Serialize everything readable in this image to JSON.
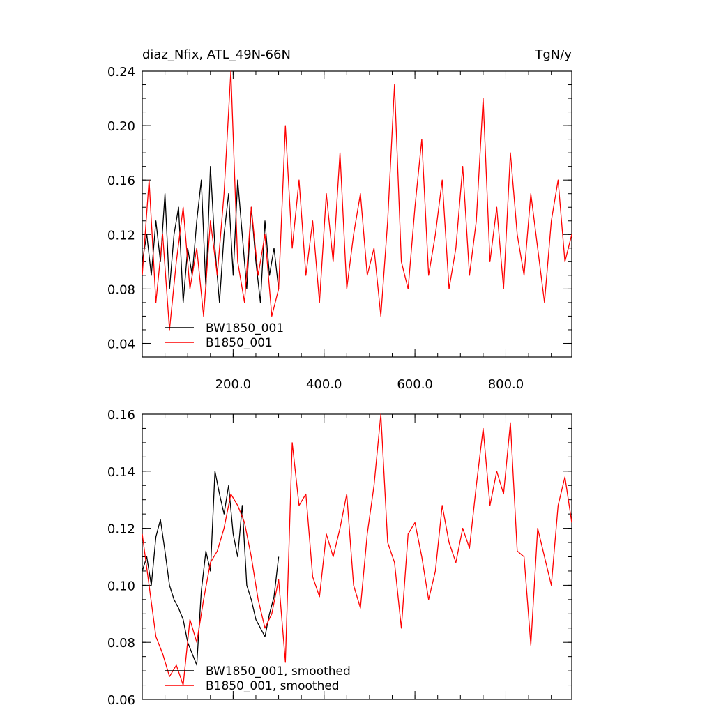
{
  "chart_data": [
    {
      "type": "line",
      "title": "diaz_Nfix, ATL_49N-66N",
      "units": "TgN/y",
      "xlim": [
        0,
        945
      ],
      "ylim": [
        0.03,
        0.24
      ],
      "xticks": [
        200,
        400,
        600,
        800
      ],
      "xtick_labels": [
        "200.0",
        "400.0",
        "600.0",
        "800.0"
      ],
      "yticks": [
        0.04,
        0.08,
        0.12,
        0.16,
        0.2,
        0.24
      ],
      "ytick_labels": [
        "0.04",
        "0.08",
        "0.12",
        "0.16",
        "0.20",
        "0.24"
      ],
      "grid": false,
      "legend_placement": "bottom-left",
      "series": [
        {
          "name": "BW1850_001",
          "color": "#000000",
          "x": [
            0,
            10,
            20,
            30,
            40,
            50,
            60,
            70,
            80,
            90,
            100,
            110,
            120,
            130,
            140,
            150,
            160,
            170,
            180,
            190,
            200,
            210,
            220,
            230,
            240,
            250,
            260,
            270,
            280,
            290,
            300
          ],
          "values": [
            0.1,
            0.12,
            0.09,
            0.13,
            0.1,
            0.15,
            0.08,
            0.12,
            0.14,
            0.07,
            0.11,
            0.09,
            0.13,
            0.16,
            0.08,
            0.17,
            0.11,
            0.07,
            0.12,
            0.15,
            0.09,
            0.16,
            0.12,
            0.08,
            0.14,
            0.1,
            0.07,
            0.13,
            0.09,
            0.11,
            0.08
          ]
        },
        {
          "name": "B1850_001",
          "color": "#ff0000",
          "x": [
            0,
            15,
            30,
            45,
            60,
            75,
            90,
            105,
            120,
            135,
            150,
            165,
            180,
            195,
            210,
            225,
            240,
            255,
            270,
            285,
            300,
            315,
            330,
            345,
            360,
            375,
            390,
            405,
            420,
            435,
            450,
            465,
            480,
            495,
            510,
            525,
            540,
            555,
            570,
            585,
            600,
            615,
            630,
            645,
            660,
            675,
            690,
            705,
            720,
            735,
            750,
            765,
            780,
            795,
            810,
            825,
            840,
            855,
            870,
            885,
            900,
            915,
            930,
            945
          ],
          "values": [
            0.09,
            0.16,
            0.07,
            0.12,
            0.05,
            0.1,
            0.14,
            0.08,
            0.11,
            0.06,
            0.13,
            0.09,
            0.15,
            0.24,
            0.1,
            0.07,
            0.14,
            0.09,
            0.12,
            0.06,
            0.08,
            0.2,
            0.11,
            0.16,
            0.09,
            0.13,
            0.07,
            0.15,
            0.1,
            0.18,
            0.08,
            0.12,
            0.15,
            0.09,
            0.11,
            0.06,
            0.13,
            0.23,
            0.1,
            0.08,
            0.14,
            0.19,
            0.09,
            0.12,
            0.16,
            0.08,
            0.11,
            0.17,
            0.09,
            0.13,
            0.22,
            0.1,
            0.14,
            0.08,
            0.18,
            0.12,
            0.09,
            0.15,
            0.11,
            0.07,
            0.13,
            0.16,
            0.1,
            0.12
          ]
        }
      ]
    },
    {
      "type": "line",
      "xlim": [
        0,
        945
      ],
      "ylim": [
        0.06,
        0.16
      ],
      "yticks": [
        0.06,
        0.08,
        0.1,
        0.12,
        0.14,
        0.16
      ],
      "ytick_labels": [
        "0.06",
        "0.08",
        "0.10",
        "0.12",
        "0.14",
        "0.16"
      ],
      "xticks": [
        200,
        400,
        600,
        800
      ],
      "grid": false,
      "legend_placement": "bottom-left",
      "series": [
        {
          "name": "BW1850_001, smoothed",
          "color": "#000000",
          "x": [
            0,
            10,
            20,
            30,
            40,
            50,
            60,
            70,
            80,
            90,
            100,
            110,
            120,
            130,
            140,
            150,
            160,
            170,
            180,
            190,
            200,
            210,
            220,
            230,
            240,
            250,
            260,
            270,
            280,
            290,
            300
          ],
          "values": [
            0.105,
            0.11,
            0.1,
            0.117,
            0.123,
            0.112,
            0.1,
            0.095,
            0.092,
            0.088,
            0.08,
            0.076,
            0.072,
            0.098,
            0.112,
            0.105,
            0.14,
            0.132,
            0.125,
            0.135,
            0.118,
            0.11,
            0.128,
            0.1,
            0.095,
            0.088,
            0.085,
            0.082,
            0.09,
            0.096,
            0.11
          ]
        },
        {
          "name": "B1850_001, smoothed",
          "color": "#ff0000",
          "x": [
            0,
            15,
            30,
            45,
            60,
            75,
            90,
            105,
            120,
            135,
            150,
            165,
            180,
            195,
            210,
            225,
            240,
            255,
            270,
            285,
            300,
            315,
            330,
            345,
            360,
            375,
            390,
            405,
            420,
            435,
            450,
            465,
            480,
            495,
            510,
            525,
            540,
            555,
            570,
            585,
            600,
            615,
            630,
            645,
            660,
            675,
            690,
            705,
            720,
            735,
            750,
            765,
            780,
            795,
            810,
            825,
            840,
            855,
            870,
            885,
            900,
            915,
            930,
            945
          ],
          "values": [
            0.118,
            0.1,
            0.082,
            0.076,
            0.068,
            0.072,
            0.065,
            0.088,
            0.08,
            0.095,
            0.108,
            0.112,
            0.12,
            0.132,
            0.128,
            0.122,
            0.11,
            0.095,
            0.085,
            0.09,
            0.102,
            0.073,
            0.15,
            0.128,
            0.132,
            0.103,
            0.096,
            0.118,
            0.11,
            0.12,
            0.132,
            0.1,
            0.092,
            0.118,
            0.135,
            0.16,
            0.115,
            0.108,
            0.085,
            0.118,
            0.122,
            0.11,
            0.095,
            0.105,
            0.128,
            0.115,
            0.108,
            0.12,
            0.113,
            0.135,
            0.155,
            0.128,
            0.14,
            0.132,
            0.157,
            0.112,
            0.11,
            0.079,
            0.12,
            0.11,
            0.1,
            0.128,
            0.138,
            0.122
          ]
        }
      ]
    }
  ]
}
